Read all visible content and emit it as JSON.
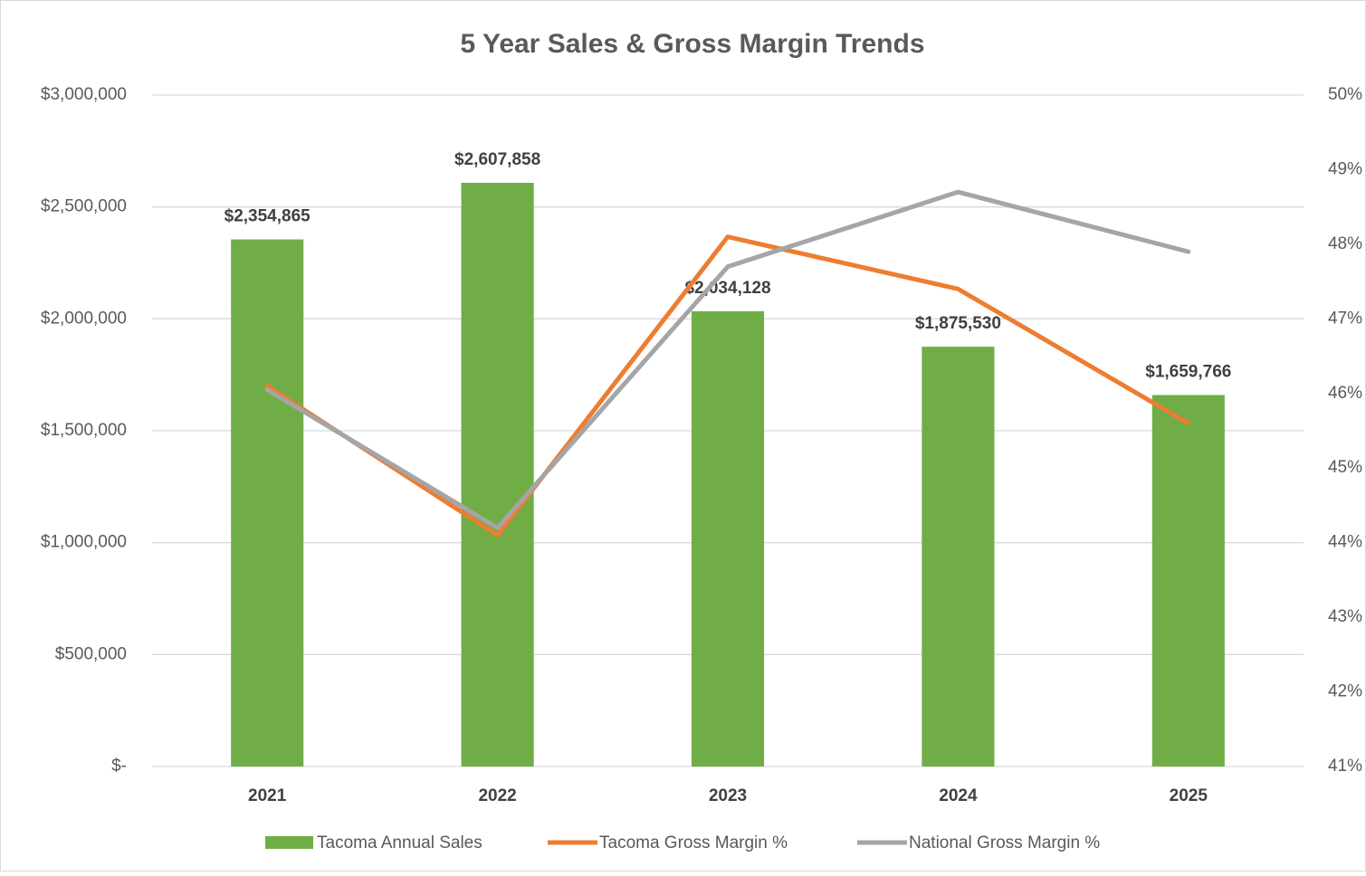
{
  "chart_data": {
    "type": "bar",
    "title": "5 Year Sales & Gross Margin Trends",
    "categories": [
      "2021",
      "2022",
      "2023",
      "2024",
      "2025"
    ],
    "series": [
      {
        "name": "Tacoma Annual Sales",
        "type": "bar",
        "color": "#70ad47",
        "values": [
          2354865,
          2607858,
          2034128,
          1875530,
          1659766
        ],
        "value_labels": [
          "$2,354,865",
          "$2,607,858",
          "$2,034,128",
          "$1,875,530",
          "$1,659,766"
        ]
      },
      {
        "name": "Tacoma Gross Margin %",
        "type": "line",
        "axis": "y2",
        "color": "#ed7d31",
        "values": [
          46.1,
          44.1,
          48.1,
          47.4,
          45.6
        ]
      },
      {
        "name": "National Gross Margin %",
        "type": "line",
        "axis": "y2",
        "color": "#a5a5a5",
        "values": [
          46.05,
          44.2,
          47.7,
          48.7,
          47.9
        ]
      }
    ],
    "ylim": [
      0,
      3000000
    ],
    "yticks": [
      {
        "value": 0,
        "label": "$-"
      },
      {
        "value": 500000,
        "label": "$500,000"
      },
      {
        "value": 1000000,
        "label": "$1,000,000"
      },
      {
        "value": 1500000,
        "label": "$1,500,000"
      },
      {
        "value": 2000000,
        "label": "$2,000,000"
      },
      {
        "value": 2500000,
        "label": "$2,500,000"
      },
      {
        "value": 3000000,
        "label": "$3,000,000"
      }
    ],
    "y2lim": [
      41,
      50
    ],
    "y2ticks": [
      {
        "value": 41,
        "label": "41%"
      },
      {
        "value": 42,
        "label": "42%"
      },
      {
        "value": 43,
        "label": "43%"
      },
      {
        "value": 44,
        "label": "44%"
      },
      {
        "value": 45,
        "label": "45%"
      },
      {
        "value": 46,
        "label": "46%"
      },
      {
        "value": 47,
        "label": "47%"
      },
      {
        "value": 48,
        "label": "48%"
      },
      {
        "value": 49,
        "label": "49%"
      },
      {
        "value": 50,
        "label": "50%"
      }
    ],
    "grid": true,
    "legend": "bottom"
  }
}
